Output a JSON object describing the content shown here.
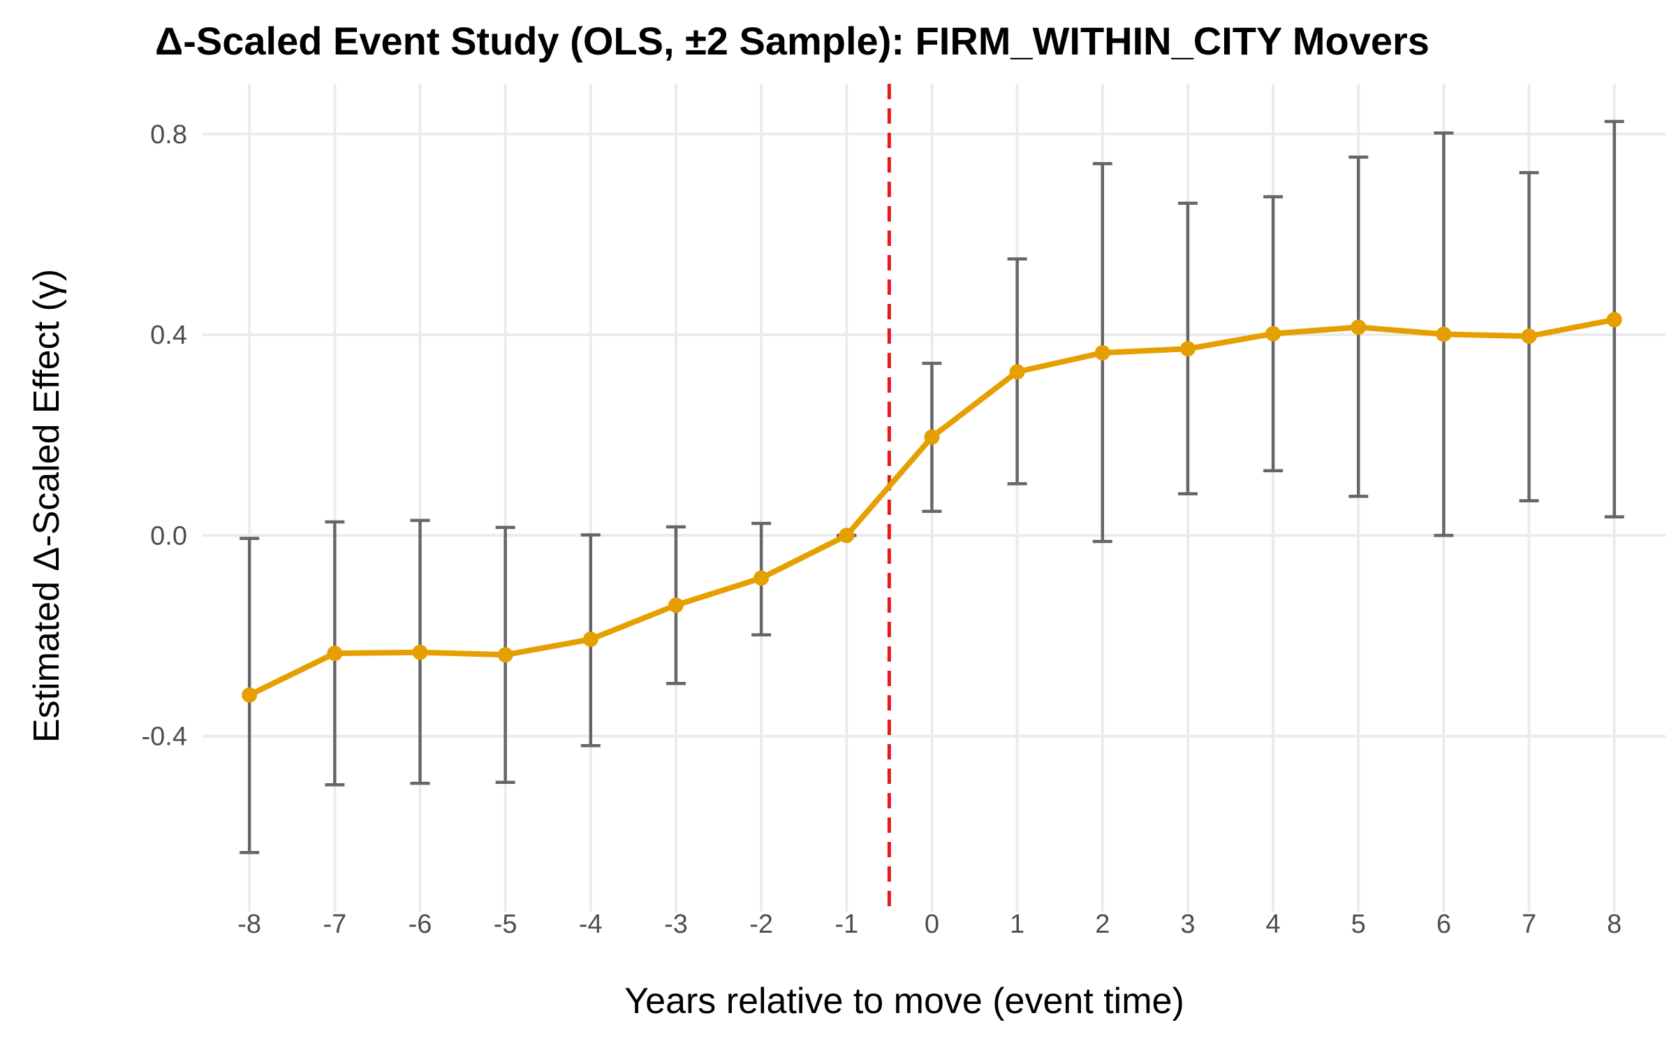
{
  "chart_data": {
    "type": "line",
    "title": "Δ-Scaled Event Study (OLS, ±2 Sample): FIRM_WITHIN_CITY Movers",
    "xlabel": "Years relative to move (event time)",
    "ylabel": "Estimated Δ-Scaled Effect (γ)",
    "x": [
      -8,
      -7,
      -6,
      -5,
      -4,
      -3,
      -2,
      -1,
      0,
      1,
      2,
      3,
      4,
      5,
      6,
      7,
      8
    ],
    "x_tick_labels": [
      "-8",
      "-7",
      "-6",
      "-5",
      "-4",
      "-3",
      "-2",
      "-1",
      "0",
      "1",
      "2",
      "3",
      "4",
      "5",
      "6",
      "7",
      "8"
    ],
    "y_ticks": [
      -0.4,
      0.0,
      0.4,
      0.8
    ],
    "y_tick_labels": [
      "-0.4",
      "0.0",
      "0.4",
      "0.8"
    ],
    "xlim": [
      -8.55,
      8.6
    ],
    "ylim": [
      -0.75,
      0.9
    ],
    "grid": true,
    "reference_line": {
      "x": -0.5,
      "color": "#e41a1c",
      "style": "dashed"
    },
    "series": [
      {
        "color": "#e69f00",
        "estimate": [
          -0.318,
          -0.235,
          -0.233,
          -0.238,
          -0.207,
          -0.139,
          -0.085,
          0.0,
          0.196,
          0.326,
          0.364,
          0.372,
          0.402,
          0.415,
          0.401,
          0.397,
          0.43
        ],
        "ci_low": [
          -0.632,
          -0.497,
          -0.494,
          -0.492,
          -0.419,
          -0.295,
          -0.198,
          0.0,
          0.048,
          0.103,
          -0.012,
          0.083,
          0.129,
          0.078,
          0.0,
          0.069,
          0.037
        ],
        "ci_high": [
          -0.006,
          0.027,
          0.03,
          0.016,
          0.001,
          0.017,
          0.024,
          0.0,
          0.343,
          0.551,
          0.741,
          0.662,
          0.675,
          0.754,
          0.802,
          0.723,
          0.825
        ]
      }
    ],
    "errorbar_color": "#666666"
  }
}
